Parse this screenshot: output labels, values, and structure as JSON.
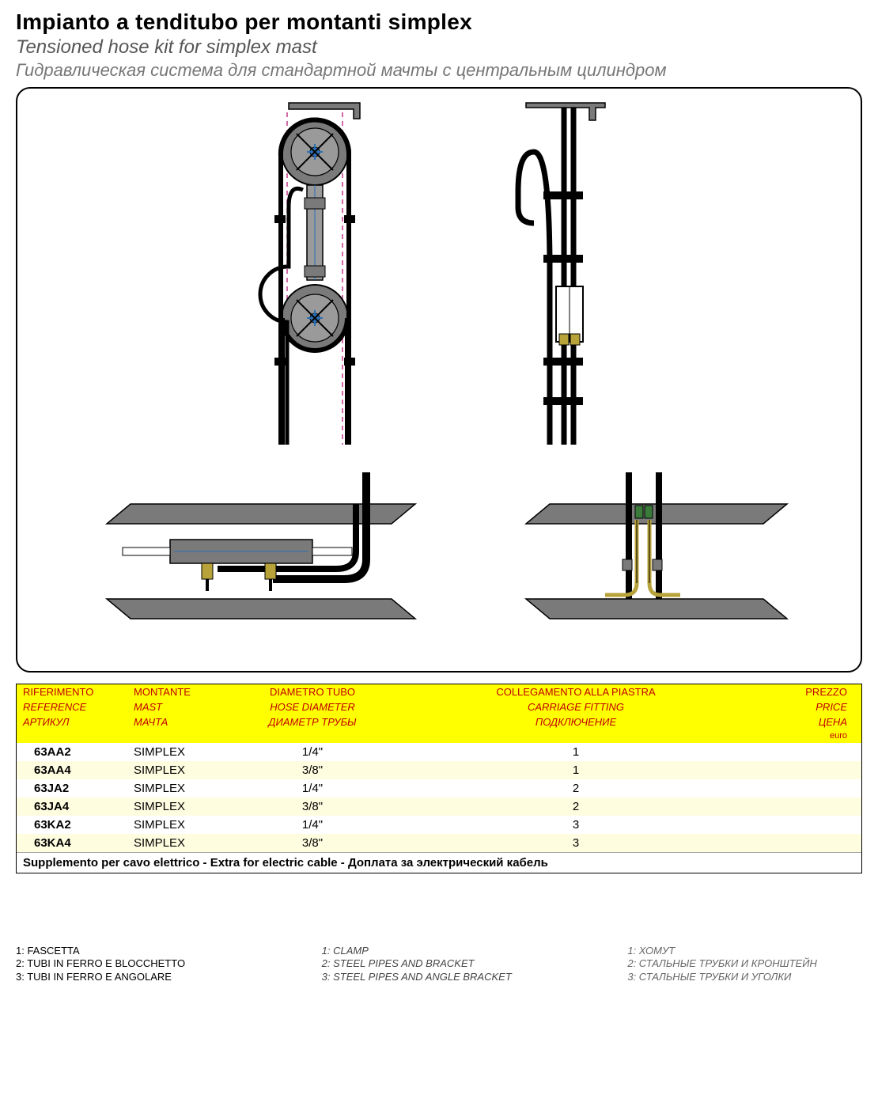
{
  "titles": {
    "it": "Impianto a tenditubo per montanti simplex",
    "en": "Tensioned hose kit for simplex mast",
    "ru": "Гидравлическая система для стандартной мачты с центральным цилиндром"
  },
  "diagram": {
    "colors": {
      "outline": "#000000",
      "steel": "#7a7a7a",
      "steel_light": "#9a9a9a",
      "hose": "#000000",
      "accent_blue": "#2a6fb5",
      "magenta": "#c23a8a",
      "brass": "#b8a23a",
      "green": "#3a7a3a",
      "white": "#ffffff"
    }
  },
  "table": {
    "header": {
      "it": [
        "RIFERIMENTO",
        "MONTANTE",
        "DIAMETRO TUBO",
        "COLLEGAMENTO ALLA PIASTRA",
        "PREZZO"
      ],
      "en": [
        "REFERENCE",
        "MAST",
        "HOSE DIAMETER",
        "CARRIAGE FITTING",
        "PRICE"
      ],
      "ru": [
        "АРТИКУЛ",
        "МАЧТА",
        "ДИАМЕТР ТРУБЫ",
        "ПОДКЛЮЧЕНИЕ",
        "ЦЕНА"
      ],
      "euro": "euro"
    },
    "rows": [
      {
        "ref": "63AA2",
        "mast": "SIMPLEX",
        "dia": "1/4\"",
        "fit": "1",
        "price": ""
      },
      {
        "ref": "63AA4",
        "mast": "SIMPLEX",
        "dia": "3/8\"",
        "fit": "1",
        "price": ""
      },
      {
        "ref": "63JA2",
        "mast": "SIMPLEX",
        "dia": "1/4\"",
        "fit": "2",
        "price": ""
      },
      {
        "ref": "63JA4",
        "mast": "SIMPLEX",
        "dia": "3/8\"",
        "fit": "2",
        "price": ""
      },
      {
        "ref": "63KA2",
        "mast": "SIMPLEX",
        "dia": "1/4\"",
        "fit": "3",
        "price": ""
      },
      {
        "ref": "63KA4",
        "mast": "SIMPLEX",
        "dia": "3/8\"",
        "fit": "3",
        "price": ""
      }
    ],
    "supplement": "Supplemento per cavo elettrico - Extra for electric cable - Доплата за электрический кабель"
  },
  "footnotes": {
    "it": [
      "1: FASCETTA",
      "2: TUBI IN FERRO E BLOCCHETTO",
      "3: TUBI IN FERRO E ANGOLARE"
    ],
    "en": [
      "1: CLAMP",
      "2: STEEL PIPES AND BRACKET",
      "3: STEEL PIPES AND ANGLE BRACKET"
    ],
    "ru": [
      "1: ХОМУТ",
      "2: СТАЛЬНЫЕ ТРУБКИ И КРОНШТЕЙН",
      "3: СТАЛЬНЫЕ ТРУБКИ И УГОЛКИ"
    ]
  }
}
